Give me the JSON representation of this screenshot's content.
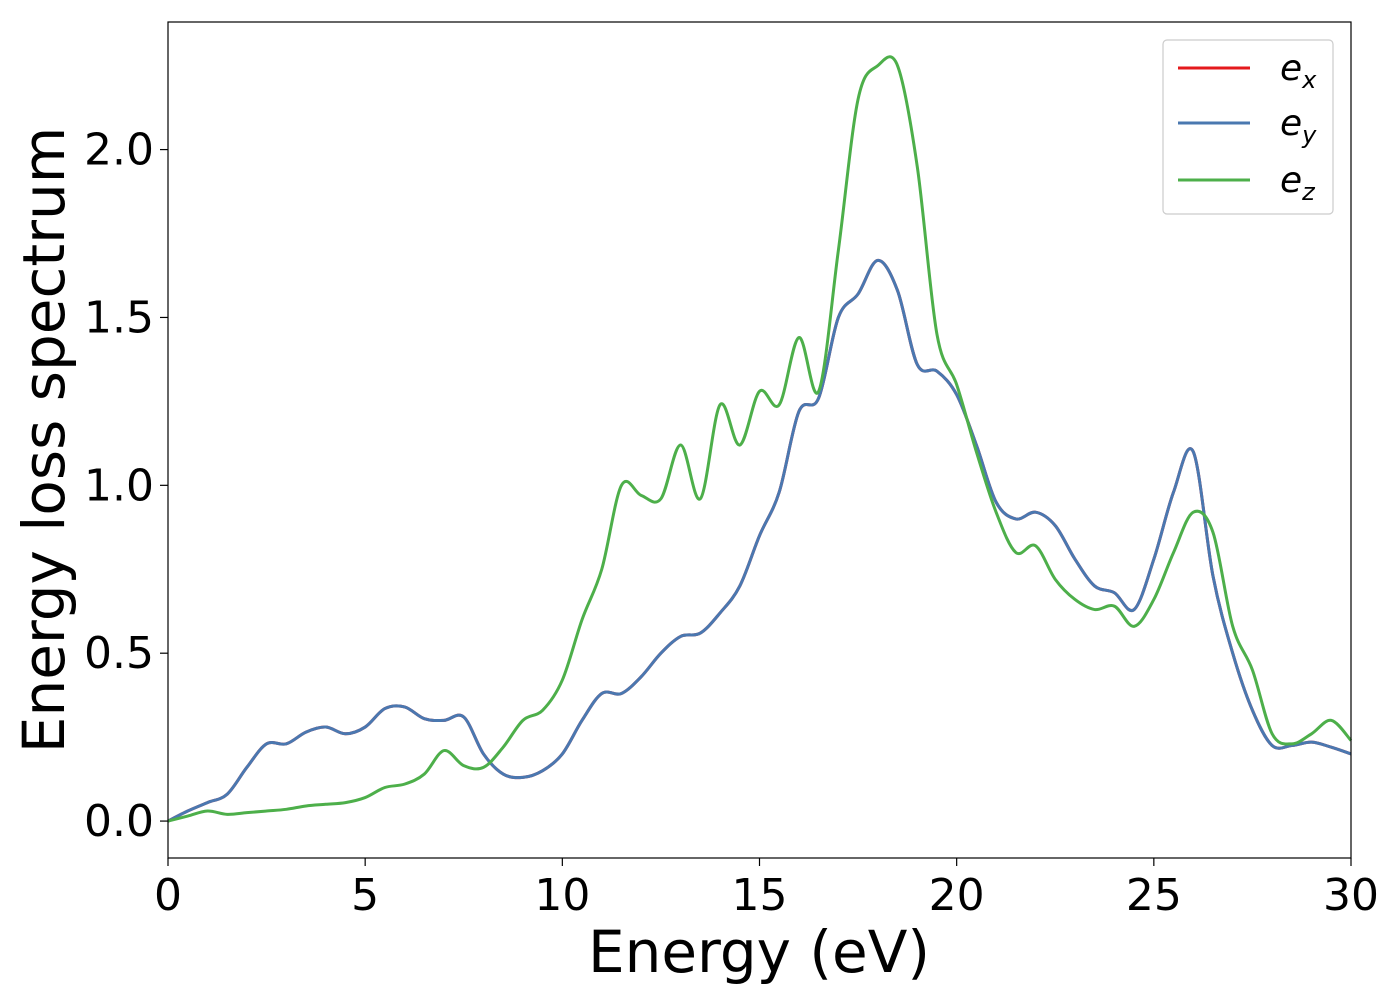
{
  "chart_data": {
    "type": "line",
    "title": "",
    "xlabel": "Energy (eV)",
    "ylabel": "Energy loss spectrum",
    "xlim": [
      0,
      30
    ],
    "ylim": [
      -0.11,
      2.38
    ],
    "xticks": [
      0,
      5,
      10,
      15,
      20,
      25,
      30
    ],
    "xtick_labels": [
      "0",
      "5",
      "10",
      "15",
      "20",
      "25",
      "30"
    ],
    "yticks": [
      0.0,
      0.5,
      1.0,
      1.5,
      2.0
    ],
    "ytick_labels": [
      "0.0",
      "0.5",
      "1.0",
      "1.5",
      "2.0"
    ],
    "grid": false,
    "legend_position": "top-right",
    "series": [
      {
        "name": "e_x",
        "legend_base": "e",
        "legend_sub": "x",
        "color": "#e41a1c",
        "x": [
          0,
          0.5,
          1,
          1.5,
          2,
          2.5,
          3,
          3.5,
          4,
          4.5,
          5,
          5.5,
          6,
          6.5,
          7,
          7.5,
          8,
          8.5,
          9,
          9.5,
          10,
          10.5,
          11,
          11.5,
          12,
          12.5,
          13,
          13.5,
          14,
          14.5,
          15,
          15.5,
          16,
          16.5,
          17,
          17.5,
          18,
          18.5,
          19,
          19.5,
          20,
          20.5,
          21,
          21.5,
          22,
          22.5,
          23,
          23.5,
          24,
          24.5,
          25,
          25.5,
          26,
          26.5,
          27,
          27.5,
          28,
          28.5,
          29,
          29.5,
          30
        ],
        "y": [
          0.0,
          0.03,
          0.055,
          0.08,
          0.16,
          0.23,
          0.23,
          0.265,
          0.28,
          0.26,
          0.28,
          0.335,
          0.34,
          0.305,
          0.3,
          0.31,
          0.2,
          0.14,
          0.13,
          0.15,
          0.2,
          0.3,
          0.38,
          0.38,
          0.43,
          0.5,
          0.55,
          0.56,
          0.62,
          0.7,
          0.85,
          0.98,
          1.22,
          1.26,
          1.5,
          1.57,
          1.67,
          1.58,
          1.36,
          1.34,
          1.27,
          1.12,
          0.95,
          0.9,
          0.92,
          0.88,
          0.78,
          0.7,
          0.68,
          0.63,
          0.78,
          0.98,
          1.1,
          0.73,
          0.5,
          0.33,
          0.225,
          0.225,
          0.235,
          0.22,
          0.2
        ]
      },
      {
        "name": "e_y",
        "legend_base": "e",
        "legend_sub": "y",
        "color": "#4a78b0",
        "x": [
          0,
          0.5,
          1,
          1.5,
          2,
          2.5,
          3,
          3.5,
          4,
          4.5,
          5,
          5.5,
          6,
          6.5,
          7,
          7.5,
          8,
          8.5,
          9,
          9.5,
          10,
          10.5,
          11,
          11.5,
          12,
          12.5,
          13,
          13.5,
          14,
          14.5,
          15,
          15.5,
          16,
          16.5,
          17,
          17.5,
          18,
          18.5,
          19,
          19.5,
          20,
          20.5,
          21,
          21.5,
          22,
          22.5,
          23,
          23.5,
          24,
          24.5,
          25,
          25.5,
          26,
          26.5,
          27,
          27.5,
          28,
          28.5,
          29,
          29.5,
          30
        ],
        "y": [
          0.0,
          0.03,
          0.055,
          0.08,
          0.16,
          0.23,
          0.23,
          0.265,
          0.28,
          0.26,
          0.28,
          0.335,
          0.34,
          0.305,
          0.3,
          0.31,
          0.2,
          0.14,
          0.13,
          0.15,
          0.2,
          0.3,
          0.38,
          0.38,
          0.43,
          0.5,
          0.55,
          0.56,
          0.62,
          0.7,
          0.85,
          0.98,
          1.22,
          1.26,
          1.5,
          1.57,
          1.67,
          1.58,
          1.36,
          1.34,
          1.27,
          1.12,
          0.95,
          0.9,
          0.92,
          0.88,
          0.78,
          0.7,
          0.68,
          0.63,
          0.78,
          0.98,
          1.1,
          0.73,
          0.5,
          0.33,
          0.225,
          0.225,
          0.235,
          0.22,
          0.2
        ]
      },
      {
        "name": "e_z",
        "legend_base": "e",
        "legend_sub": "z",
        "color": "#4daf4a",
        "x": [
          0,
          0.5,
          1,
          1.5,
          2,
          2.5,
          3,
          3.5,
          4,
          4.5,
          5,
          5.5,
          6,
          6.5,
          7,
          7.5,
          8,
          8.5,
          9,
          9.5,
          10,
          10.5,
          11,
          11.5,
          12,
          12.5,
          13,
          13.5,
          14,
          14.5,
          15,
          15.5,
          16,
          16.5,
          17,
          17.5,
          18,
          18.5,
          19,
          19.5,
          20,
          20.5,
          21,
          21.5,
          22,
          22.5,
          23,
          23.5,
          24,
          24.5,
          25,
          25.5,
          26,
          26.5,
          27,
          27.5,
          28,
          28.5,
          29,
          29.5,
          30
        ],
        "y": [
          0.0,
          0.015,
          0.03,
          0.02,
          0.025,
          0.03,
          0.035,
          0.045,
          0.05,
          0.055,
          0.07,
          0.1,
          0.11,
          0.14,
          0.21,
          0.165,
          0.16,
          0.22,
          0.3,
          0.33,
          0.42,
          0.6,
          0.75,
          1.0,
          0.97,
          0.96,
          1.12,
          0.96,
          1.24,
          1.12,
          1.28,
          1.24,
          1.44,
          1.28,
          1.7,
          2.15,
          2.25,
          2.25,
          1.95,
          1.45,
          1.3,
          1.1,
          0.92,
          0.8,
          0.82,
          0.72,
          0.66,
          0.63,
          0.64,
          0.58,
          0.66,
          0.8,
          0.92,
          0.86,
          0.58,
          0.45,
          0.26,
          0.23,
          0.26,
          0.3,
          0.24
        ]
      }
    ]
  }
}
